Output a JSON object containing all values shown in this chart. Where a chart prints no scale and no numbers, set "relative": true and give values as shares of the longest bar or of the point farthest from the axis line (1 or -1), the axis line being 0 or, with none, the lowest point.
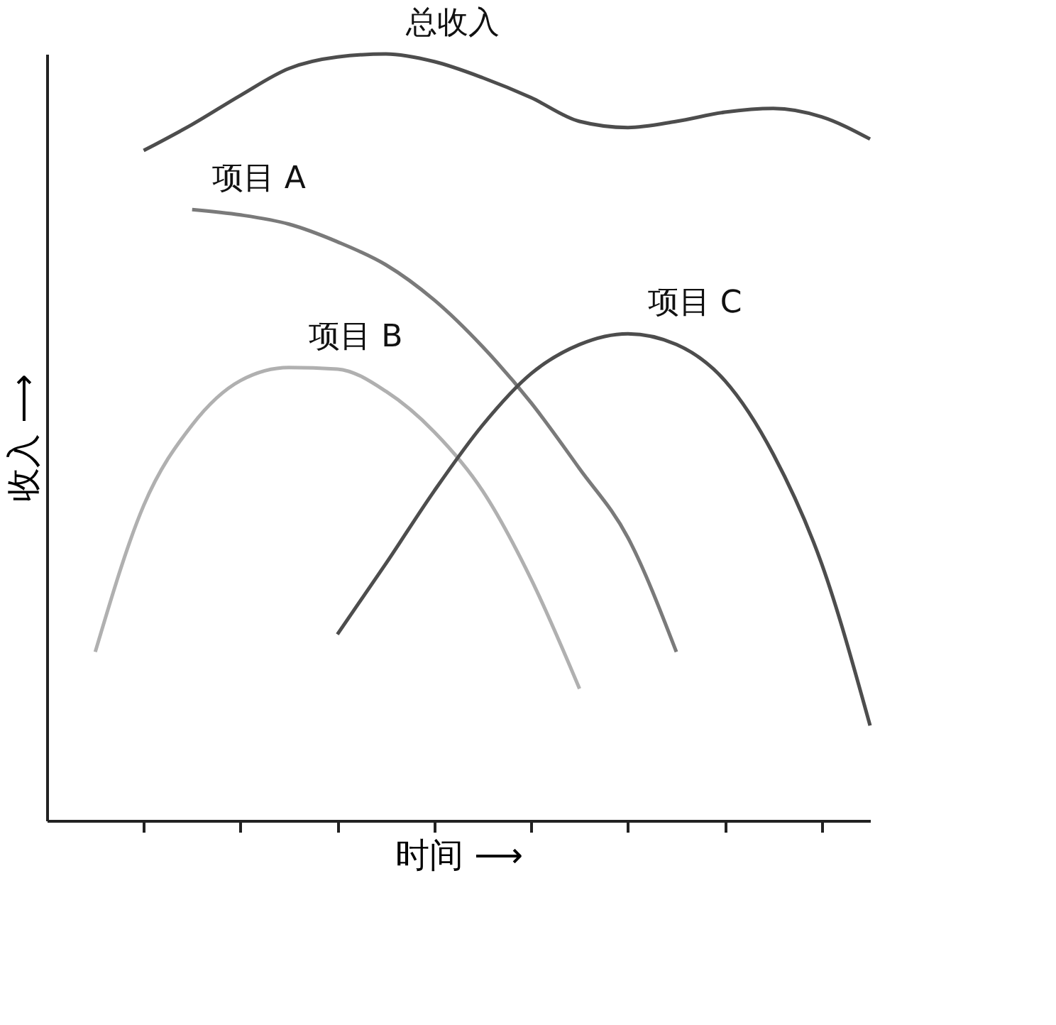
{
  "chart_data": {
    "type": "line",
    "relative": true,
    "xlabel": "时间 ⟶",
    "ylabel": "收入 ⟶",
    "grid": false,
    "marker": "none",
    "line_style": "solid",
    "categories": [
      null,
      null,
      null,
      null,
      null,
      null,
      null,
      null,
      null,
      null,
      null,
      null,
      null,
      null,
      null,
      null,
      null
    ],
    "series": [
      {
        "name": "总收入",
        "color": "#4d4d4d",
        "values": [
          null,
          0.874,
          0.908,
          0.946,
          0.981,
          0.996,
          1.0,
          0.99,
          0.969,
          0.943,
          0.912,
          0.904,
          0.912,
          0.924,
          0.929,
          0.918,
          0.889
        ]
      },
      {
        "name": "项目 A",
        "color": "#7a7a7a",
        "values": [
          null,
          null,
          0.797,
          0.79,
          0.778,
          0.755,
          0.725,
          0.679,
          0.618,
          0.545,
          0.459,
          0.369,
          0.22,
          null,
          null,
          null,
          null
        ]
      },
      {
        "name": "项目 B",
        "color": "#b0b0b0",
        "values": [
          0.22,
          0.411,
          0.516,
          0.574,
          0.591,
          0.589,
          0.56,
          0.507,
          0.43,
          0.315,
          0.172,
          null,
          null,
          null,
          null,
          null,
          null
        ]
      },
      {
        "name": "项目 C",
        "color": "#4d4d4d",
        "values": [
          null,
          null,
          null,
          null,
          null,
          0.243,
          0.335,
          0.43,
          0.516,
          0.583,
          0.621,
          0.635,
          0.621,
          0.574,
          0.478,
          0.335,
          0.124
        ]
      }
    ]
  }
}
